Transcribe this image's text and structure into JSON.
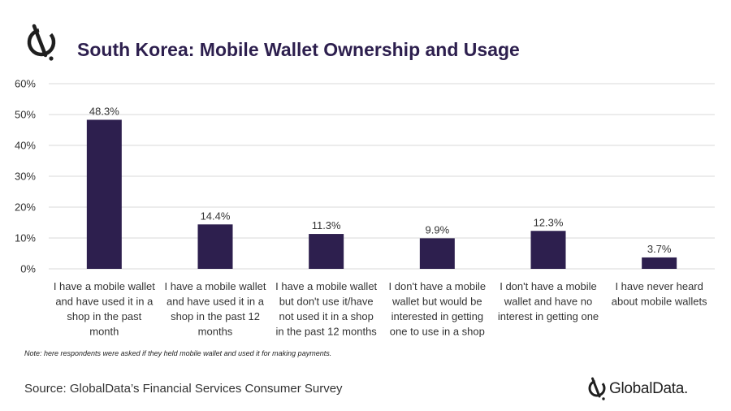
{
  "header": {
    "title": "South Korea: Mobile Wallet Ownership and Usage",
    "logo_icon": "globaldata-logo-icon"
  },
  "chart_data": {
    "type": "bar",
    "title": "South Korea: Mobile Wallet Ownership and Usage",
    "categories": [
      "I have a mobile wallet and have used it in a shop in the past month",
      "I have a mobile wallet and have used it in a shop in the past 12 months",
      "I have a mobile wallet but don't use it/have not used it in a shop in the past 12 months",
      "I don't have a mobile wallet but would be interested in getting one to use in a shop",
      "I don't have a mobile wallet and have no interest in getting one",
      "I have never heard about mobile wallets"
    ],
    "category_lines": [
      [
        "I have a mobile wallet",
        "and have used it in a",
        "shop in the past",
        "month"
      ],
      [
        "I have a mobile wallet",
        "and have used it in a",
        "shop in the past 12",
        "months"
      ],
      [
        "I have a mobile wallet",
        "but don't use it/have",
        "not used it in a shop",
        "in the past 12 months"
      ],
      [
        "I don't have a mobile",
        "wallet but would be",
        "interested in getting",
        "one to use in a shop"
      ],
      [
        "I don't have a mobile",
        "wallet and have no",
        "interest in getting one"
      ],
      [
        "I have never heard",
        "about mobile wallets"
      ]
    ],
    "values": [
      48.3,
      14.4,
      11.3,
      9.9,
      12.3,
      3.7
    ],
    "data_labels": [
      "48.3%",
      "14.4%",
      "11.3%",
      "9.9%",
      "12.3%",
      "3.7%"
    ],
    "ylim": [
      0,
      60
    ],
    "yticks": [
      0,
      10,
      20,
      30,
      40,
      50,
      60
    ],
    "ytick_labels": [
      "0%",
      "10%",
      "20%",
      "30%",
      "40%",
      "50%",
      "60%"
    ],
    "xlabel": "",
    "ylabel": "",
    "grid": true,
    "legend": "none",
    "bar_color": "#2d1f4e",
    "grid_color": "#d9d9d9"
  },
  "footer": {
    "note": "Note: here respondents were asked if they held mobile wallet and used it for making payments.",
    "source": "Source: GlobalData’s Financial Services Consumer Survey",
    "brand_name": "GlobalData.",
    "brand_icon": "globaldata-logo-icon"
  }
}
